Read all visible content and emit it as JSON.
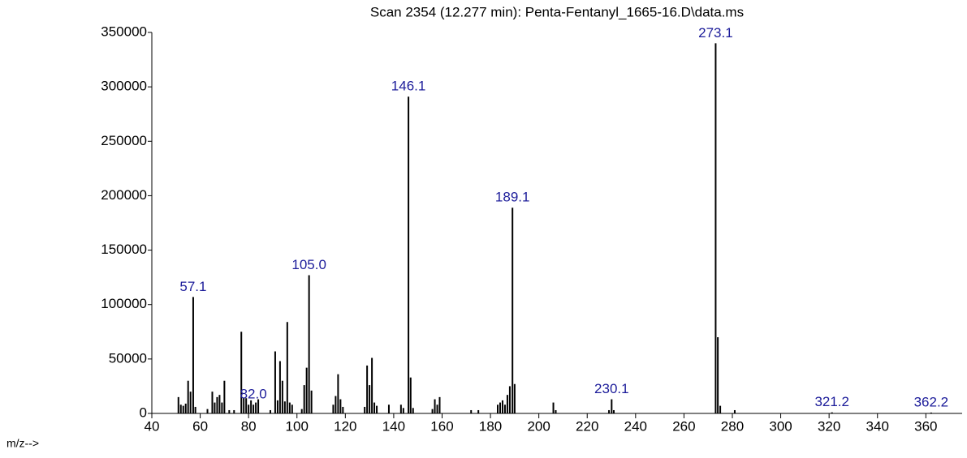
{
  "chart_data": {
    "type": "bar",
    "title": "Scan 2354 (12.277 min): Penta-Fentanyl_1665-16.D\\data.ms",
    "x_label": "m/z-->",
    "color": "#000000",
    "label_color": "#1c1c9a",
    "xlim": [
      40,
      375
    ],
    "ylim": [
      0,
      350000
    ],
    "xticks": [
      40,
      60,
      80,
      100,
      120,
      140,
      160,
      180,
      200,
      220,
      240,
      260,
      280,
      300,
      320,
      340,
      360
    ],
    "yticks": [
      0,
      50000,
      100000,
      150000,
      200000,
      250000,
      300000,
      350000
    ],
    "x": [
      51,
      52,
      53,
      54,
      55,
      56,
      57.1,
      58,
      63,
      65,
      66,
      67,
      68,
      69,
      70,
      72,
      74,
      77,
      78,
      79,
      80,
      81,
      82,
      83,
      84,
      89,
      91,
      92,
      93,
      94,
      95,
      96,
      97,
      98,
      102,
      103,
      104,
      105,
      106,
      115,
      116,
      117,
      118,
      119,
      128,
      129,
      130,
      131,
      132,
      133,
      138,
      143,
      144,
      146.1,
      147,
      148,
      156,
      157,
      158,
      159,
      172,
      175,
      183,
      184,
      185,
      186,
      187,
      188,
      189.1,
      190,
      206,
      207,
      229,
      230.1,
      231,
      273.1,
      274,
      275,
      281,
      321.2,
      362.2
    ],
    "values": [
      15000,
      8000,
      7000,
      9000,
      30000,
      20000,
      107000,
      6000,
      4000,
      20000,
      10000,
      15000,
      17000,
      10000,
      30000,
      3000,
      3000,
      75000,
      14000,
      14000,
      8000,
      12000,
      8000,
      10000,
      13000,
      3000,
      57000,
      12000,
      48000,
      30000,
      11000,
      84000,
      10000,
      8000,
      4000,
      26000,
      42000,
      127000,
      21000,
      8000,
      16000,
      36000,
      13000,
      6000,
      6000,
      44000,
      26000,
      51000,
      10000,
      7000,
      8000,
      8000,
      5000,
      291000,
      33000,
      5000,
      4000,
      13000,
      8000,
      15000,
      3000,
      3000,
      8000,
      10000,
      12000,
      8000,
      17000,
      25000,
      189000,
      27000,
      10000,
      3000,
      3000,
      13000,
      3000,
      340000,
      70000,
      7000,
      3000,
      1000,
      800
    ],
    "x_labels": [
      null,
      null,
      null,
      null,
      null,
      null,
      "57.1",
      null,
      null,
      null,
      null,
      null,
      null,
      null,
      null,
      null,
      null,
      null,
      null,
      null,
      null,
      null,
      "82.0",
      null,
      null,
      null,
      null,
      null,
      null,
      null,
      null,
      null,
      null,
      null,
      null,
      null,
      null,
      "105.0",
      null,
      null,
      null,
      null,
      null,
      null,
      null,
      null,
      null,
      null,
      null,
      null,
      null,
      null,
      null,
      "146.1",
      null,
      null,
      null,
      null,
      null,
      null,
      null,
      null,
      null,
      null,
      null,
      null,
      null,
      null,
      "189.1",
      null,
      null,
      null,
      null,
      "230.1",
      null,
      "273.1",
      null,
      null,
      null,
      "321.2",
      "362.2"
    ]
  }
}
